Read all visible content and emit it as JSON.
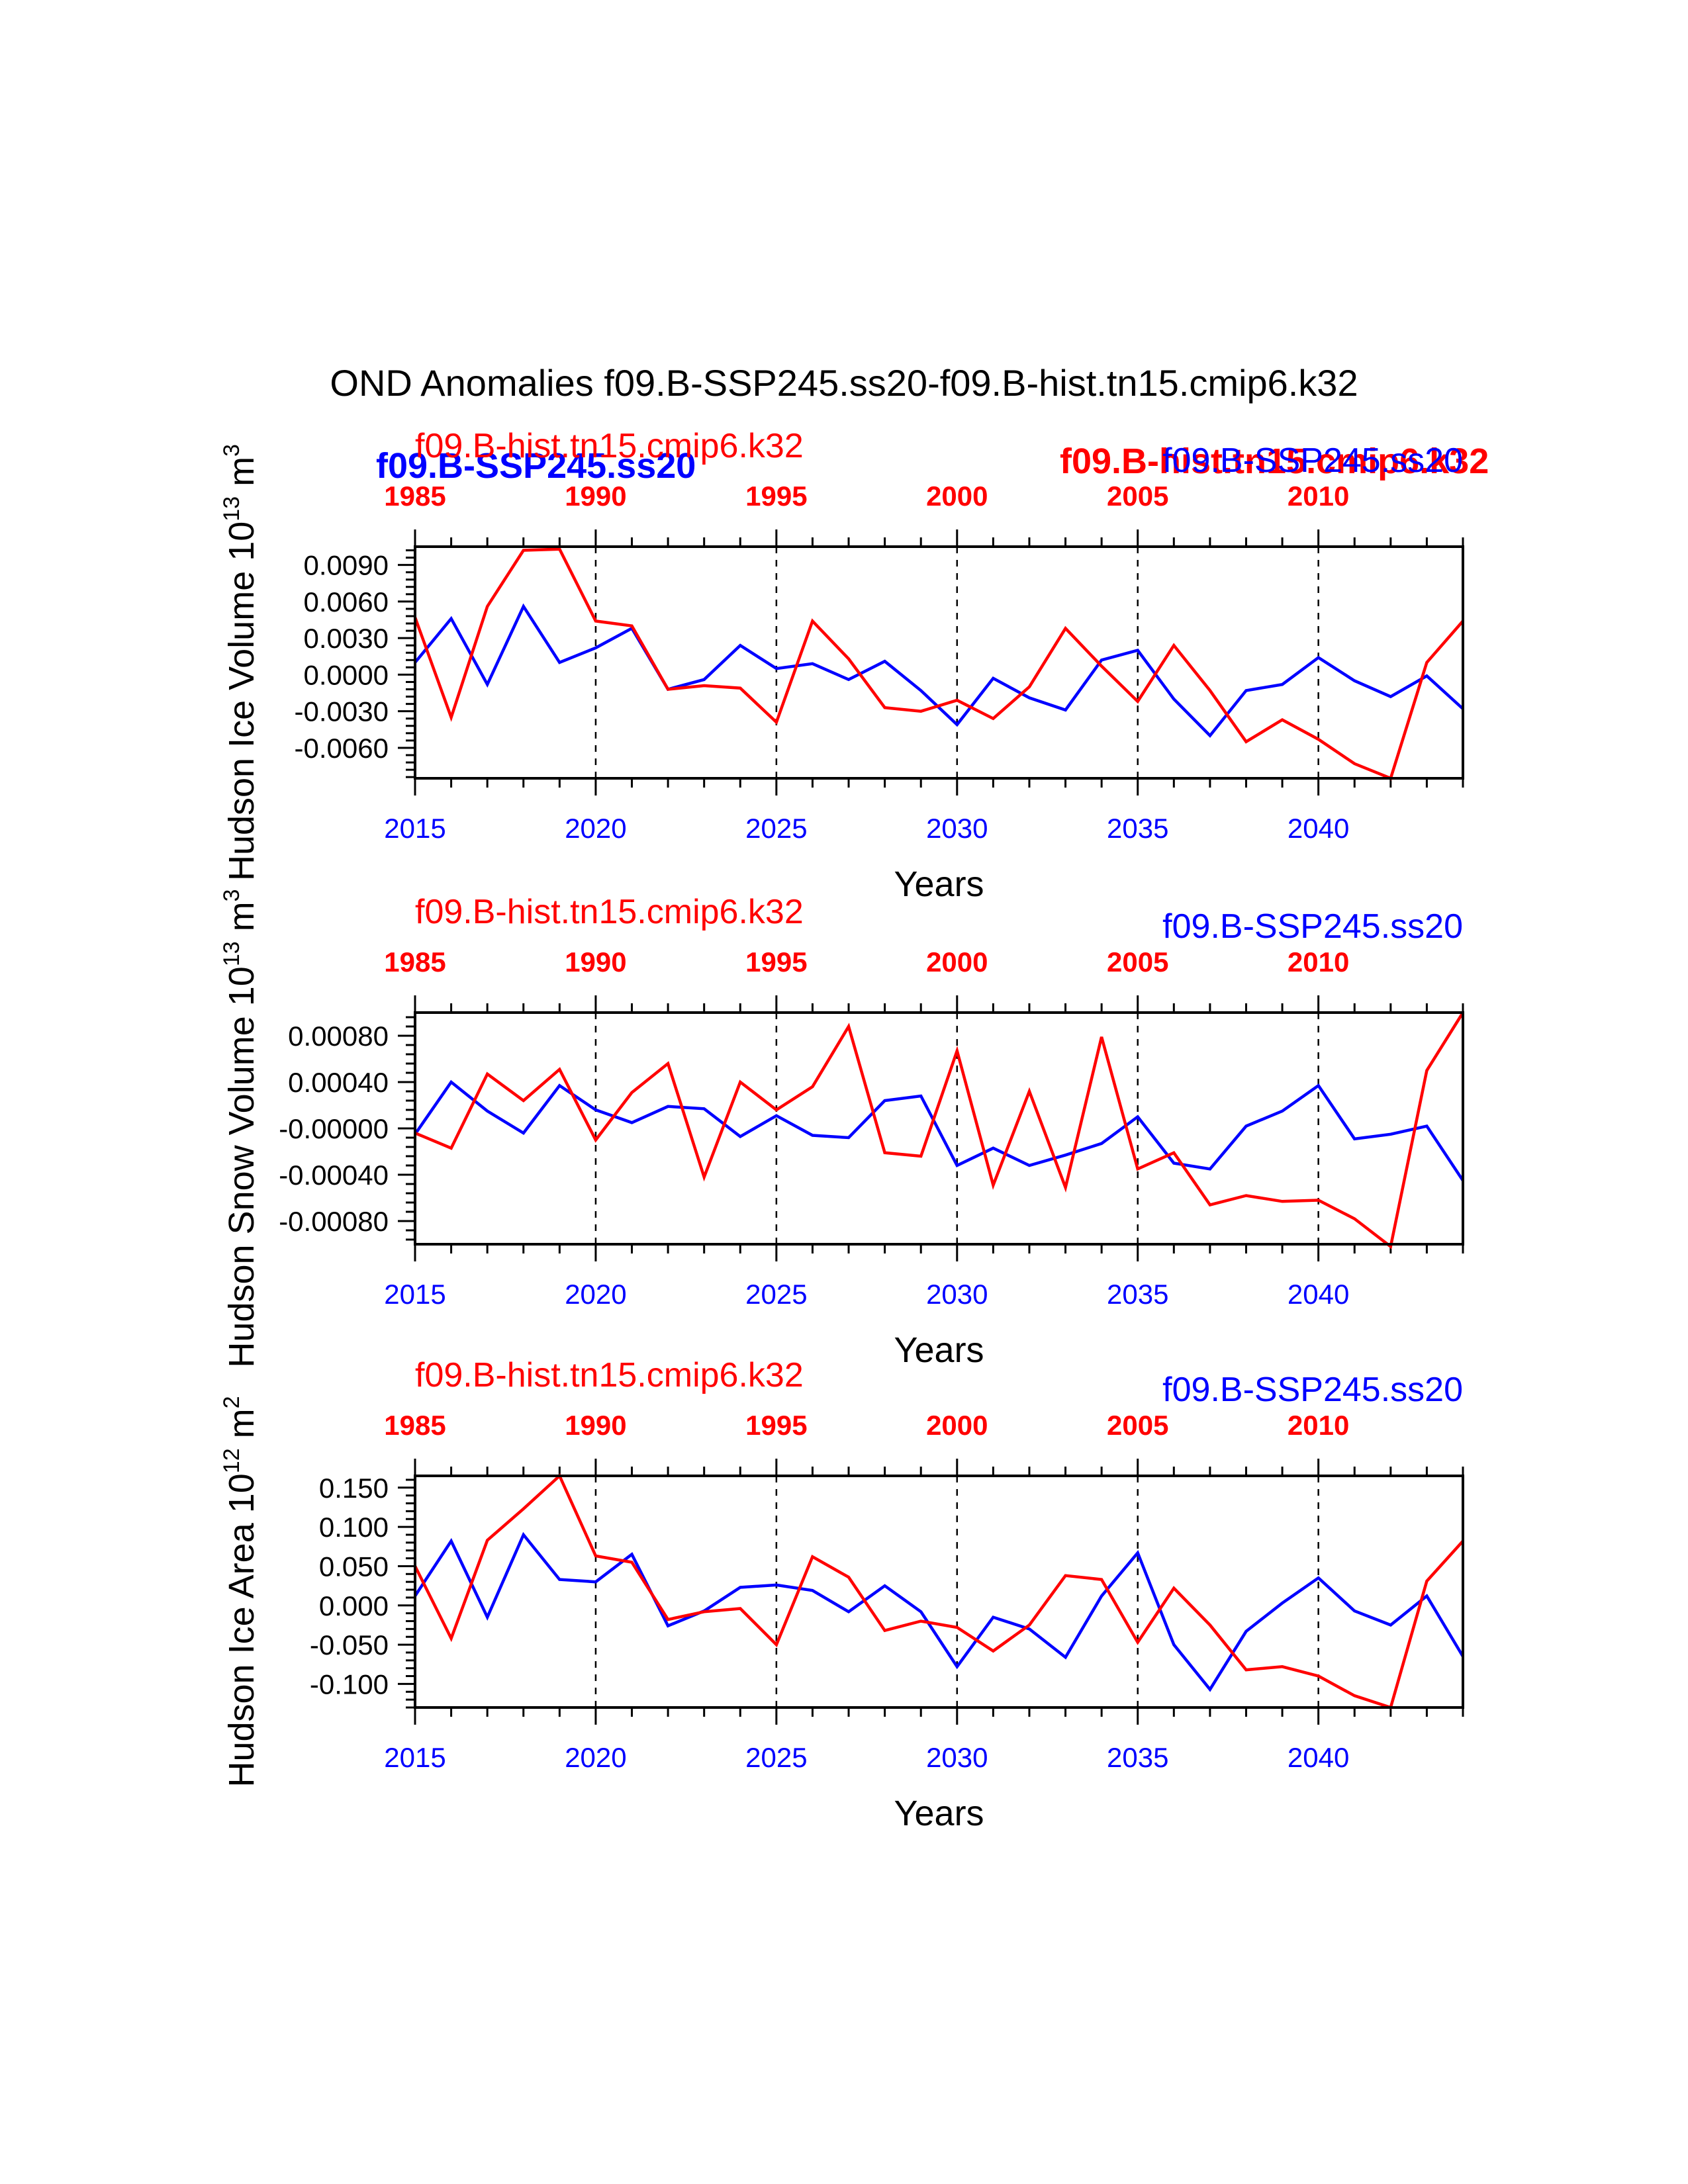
{
  "title": "OND Anomalies f09.B-SSP245.ss20-f09.B-hist.tn15.cmip6.k32",
  "colors": {
    "ssp": "#0000ff",
    "hist": "#ff0000",
    "axis": "#000000"
  },
  "overlay_labels": {
    "ssp_bold": "f09.B-SSP245.ss20",
    "hist_bold": "f09.B-hist.tn15.cmip6.k32"
  },
  "chart_data": [
    {
      "type": "line",
      "ylabel": "Hudson Ice Volume 10",
      "ylabel_sup": "13",
      "ylabel_unit": "m",
      "ylabel_unit_sup": "3",
      "xlabel": "Years",
      "bottom_axis_ticks": [
        "2015",
        "2020",
        "2025",
        "2030",
        "2035",
        "2040"
      ],
      "top_axis_ticks": [
        "1985",
        "1990",
        "1995",
        "2000",
        "2005",
        "2010"
      ],
      "y_tick_labels": [
        "0.0090",
        "0.0060",
        "0.0030",
        "0.0000",
        "-0.0030",
        "-0.0060"
      ],
      "y_ticks": [
        0.009,
        0.006,
        0.003,
        0.0,
        -0.003,
        -0.006
      ],
      "ylim": [
        -0.0085,
        0.0105
      ],
      "x_range": [
        2015,
        2044
      ],
      "series": [
        {
          "name": "f09.B-SSP245.ss20",
          "color": "#0000ff",
          "x": [
            2015,
            2016,
            2017,
            2018,
            2019,
            2020,
            2021,
            2022,
            2023,
            2024,
            2025,
            2026,
            2027,
            2028,
            2029,
            2030,
            2031,
            2032,
            2033,
            2034,
            2035,
            2036,
            2037,
            2038,
            2039,
            2040,
            2041,
            2042,
            2043,
            2044
          ],
          "values": [
            0.001,
            0.0046,
            -0.0008,
            0.0056,
            0.001,
            0.0022,
            0.0038,
            -0.0012,
            -0.0004,
            0.0024,
            0.0005,
            0.0009,
            -0.0004,
            0.0011,
            -0.0013,
            -0.0041,
            -0.0003,
            -0.0019,
            -0.0029,
            0.0012,
            0.002,
            -0.002,
            -0.005,
            -0.0013,
            -0.0008,
            0.0014,
            -0.0005,
            -0.0018,
            -0.0001,
            -0.0028
          ]
        },
        {
          "name": "f09.B-hist.tn15.cmip6.k32",
          "color": "#ff0000",
          "x": [
            2015,
            2016,
            2017,
            2018,
            2019,
            2020,
            2021,
            2022,
            2023,
            2024,
            2025,
            2026,
            2027,
            2028,
            2029,
            2030,
            2031,
            2032,
            2033,
            2034,
            2035,
            2036,
            2037,
            2038,
            2039,
            2040,
            2041,
            2042,
            2043,
            2044
          ],
          "values": [
            0.0047,
            -0.0035,
            0.0056,
            0.0102,
            0.0103,
            0.0044,
            0.004,
            -0.0012,
            -0.0009,
            -0.0011,
            -0.0039,
            0.0044,
            0.0013,
            -0.0027,
            -0.003,
            -0.0021,
            -0.0036,
            -0.001,
            0.0038,
            0.0007,
            -0.0022,
            0.0024,
            -0.0013,
            -0.0055,
            -0.0037,
            -0.0053,
            -0.0073,
            -0.0085,
            0.001,
            0.0044
          ]
        }
      ],
      "legend": {
        "left": "f09.B-hist.tn15.cmip6.k32",
        "right": "f09.B-SSP245.ss20"
      }
    },
    {
      "type": "line",
      "ylabel": "Hudson Snow Volume 10",
      "ylabel_sup": "13",
      "ylabel_unit": "m",
      "ylabel_unit_sup": "3",
      "xlabel": "Years",
      "bottom_axis_ticks": [
        "2015",
        "2020",
        "2025",
        "2030",
        "2035",
        "2040"
      ],
      "top_axis_ticks": [
        "1985",
        "1990",
        "1995",
        "2000",
        "2005",
        "2010"
      ],
      "y_tick_labels": [
        "0.00080",
        "0.00040",
        "-0.00000",
        "-0.00040",
        "-0.00080"
      ],
      "y_ticks": [
        0.0008,
        0.0004,
        0.0,
        -0.0004,
        -0.0008
      ],
      "ylim": [
        -0.001,
        0.001
      ],
      "x_range": [
        2015,
        2044
      ],
      "series": [
        {
          "name": "f09.B-SSP245.ss20",
          "color": "#0000ff",
          "x": [
            2015,
            2016,
            2017,
            2018,
            2019,
            2020,
            2021,
            2022,
            2023,
            2024,
            2025,
            2026,
            2027,
            2028,
            2029,
            2030,
            2031,
            2032,
            2033,
            2034,
            2035,
            2036,
            2037,
            2038,
            2039,
            2040,
            2041,
            2042,
            2043,
            2044
          ],
          "values": [
            -5e-05,
            0.0004,
            0.00015,
            -4e-05,
            0.00037,
            0.00016,
            5e-05,
            0.00019,
            0.00017,
            -7e-05,
            0.00011,
            -6e-05,
            -8e-05,
            0.00024,
            0.00028,
            -0.00032,
            -0.00017,
            -0.00032,
            -0.00023,
            -0.00013,
            0.0001,
            -0.0003,
            -0.00035,
            2e-05,
            0.00015,
            0.00037,
            -9e-05,
            -5e-05,
            2e-05,
            -0.00045
          ]
        },
        {
          "name": "f09.B-hist.tn15.cmip6.k32",
          "color": "#ff0000",
          "x": [
            2015,
            2016,
            2017,
            2018,
            2019,
            2020,
            2021,
            2022,
            2023,
            2024,
            2025,
            2026,
            2027,
            2028,
            2029,
            2030,
            2031,
            2032,
            2033,
            2034,
            2035,
            2036,
            2037,
            2038,
            2039,
            2040,
            2041,
            2042,
            2043,
            2044
          ],
          "values": [
            -4e-05,
            -0.00017,
            0.00047,
            0.00024,
            0.00051,
            -0.0001,
            0.00031,
            0.00056,
            -0.00042,
            0.0004,
            0.00016,
            0.00036,
            0.00088,
            -0.00021,
            -0.00024,
            0.00067,
            -0.00049,
            0.00032,
            -0.00051,
            0.00079,
            -0.00035,
            -0.00021,
            -0.00066,
            -0.00058,
            -0.00063,
            -0.00062,
            -0.00078,
            -0.00102,
            0.0005,
            0.001
          ]
        }
      ],
      "legend": {
        "left": "f09.B-hist.tn15.cmip6.k32",
        "right": "f09.B-SSP245.ss20"
      }
    },
    {
      "type": "line",
      "ylabel": "Hudson Ice Area 10",
      "ylabel_sup": "12",
      "ylabel_unit": "m",
      "ylabel_unit_sup": "2",
      "xlabel": "Years",
      "bottom_axis_ticks": [
        "2015",
        "2020",
        "2025",
        "2030",
        "2035",
        "2040"
      ],
      "top_axis_ticks": [
        "1985",
        "1990",
        "1995",
        "2000",
        "2005",
        "2010"
      ],
      "y_tick_labels": [
        "0.150",
        "0.100",
        "0.050",
        "0.000",
        "-0.050",
        "-0.100"
      ],
      "y_ticks": [
        0.15,
        0.1,
        0.05,
        0.0,
        -0.05,
        -0.1
      ],
      "ylim": [
        -0.13,
        0.165
      ],
      "x_range": [
        2015,
        2044
      ],
      "series": [
        {
          "name": "f09.B-SSP245.ss20",
          "color": "#0000ff",
          "x": [
            2015,
            2016,
            2017,
            2018,
            2019,
            2020,
            2021,
            2022,
            2023,
            2024,
            2025,
            2026,
            2027,
            2028,
            2029,
            2030,
            2031,
            2032,
            2033,
            2034,
            2035,
            2036,
            2037,
            2038,
            2039,
            2040,
            2041,
            2042,
            2043,
            2044
          ],
          "values": [
            0.012,
            0.082,
            -0.015,
            0.09,
            0.033,
            0.03,
            0.065,
            -0.026,
            -0.007,
            0.023,
            0.026,
            0.019,
            -0.008,
            0.025,
            -0.008,
            -0.078,
            -0.015,
            -0.03,
            -0.066,
            0.012,
            0.067,
            -0.05,
            -0.107,
            -0.033,
            0.003,
            0.035,
            -0.007,
            -0.025,
            0.012,
            -0.065
          ]
        },
        {
          "name": "f09.B-hist.tn15.cmip6.k32",
          "color": "#ff0000",
          "x": [
            2015,
            2016,
            2017,
            2018,
            2019,
            2020,
            2021,
            2022,
            2023,
            2024,
            2025,
            2026,
            2027,
            2028,
            2029,
            2030,
            2031,
            2032,
            2033,
            2034,
            2035,
            2036,
            2037,
            2038,
            2039,
            2040,
            2041,
            2042,
            2043,
            2044
          ],
          "values": [
            0.05,
            -0.042,
            0.083,
            0.123,
            0.165,
            0.063,
            0.055,
            -0.018,
            -0.008,
            -0.004,
            -0.05,
            0.062,
            0.036,
            -0.032,
            -0.02,
            -0.028,
            -0.058,
            -0.025,
            0.038,
            0.033,
            -0.047,
            0.022,
            -0.025,
            -0.082,
            -0.078,
            -0.09,
            -0.115,
            -0.13,
            0.031,
            0.082
          ]
        }
      ],
      "legend": {
        "left": "f09.B-hist.tn15.cmip6.k32",
        "right": "f09.B-SSP245.ss20"
      }
    }
  ]
}
